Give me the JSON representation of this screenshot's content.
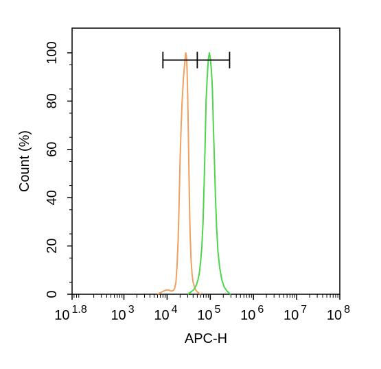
{
  "chart_data": {
    "type": "line",
    "title": "",
    "xlabel": "APC-H",
    "ylabel": "Count  (%)",
    "x_scale": "log",
    "xlim": [
      63,
      100000000
    ],
    "ylim": [
      0,
      100
    ],
    "x_ticks": [
      {
        "base": "10",
        "exp": "1.8",
        "value": 63
      },
      {
        "base": "10",
        "exp": "3",
        "value": 1000
      },
      {
        "base": "10",
        "exp": "4",
        "value": 10000
      },
      {
        "base": "10",
        "exp": "5",
        "value": 100000
      },
      {
        "base": "10",
        "exp": "6",
        "value": 1000000
      },
      {
        "base": "10",
        "exp": "7",
        "value": 10000000
      },
      {
        "base": "10",
        "exp": "8",
        "value": 100000000
      }
    ],
    "y_ticks": [
      "0",
      "20",
      "40",
      "60",
      "80",
      "100"
    ],
    "gate": {
      "x_start": 8000,
      "x_mid": 50000,
      "x_end": 280000,
      "y": 97
    },
    "grid": false,
    "colors": {
      "orange": "#f0a060",
      "green": "#4bd64b"
    },
    "series": [
      {
        "color": "#f0a060",
        "x": [
          6000,
          7000,
          8000,
          9000,
          10000,
          11000,
          12000,
          13000,
          14000,
          15000,
          16000,
          17000,
          18000,
          19000,
          20000,
          21000,
          22000,
          24000,
          26000,
          27000,
          28000,
          29000,
          30000,
          31000,
          32000,
          33000,
          34000,
          36000,
          38000,
          40000,
          43000,
          46000,
          50000,
          55000,
          60000
        ],
        "y": [
          0,
          0.6,
          1.2,
          1.6,
          1.8,
          1.7,
          1.4,
          1.3,
          1.6,
          2.5,
          5,
          12,
          22,
          38,
          55,
          68,
          78,
          90,
          97,
          100,
          99,
          93,
          82,
          68,
          52,
          38,
          26,
          14,
          8,
          5,
          3,
          1.8,
          1,
          0.4,
          0
        ]
      },
      {
        "color": "#4bd64b",
        "x": [
          30000,
          36000,
          42000,
          48000,
          52000,
          56000,
          60000,
          64000,
          68000,
          72000,
          76000,
          80000,
          85000,
          90000,
          95000,
          100000,
          106000,
          112000,
          118000,
          125000,
          132000,
          140000,
          150000,
          165000,
          185000,
          210000,
          240000,
          270000,
          300000
        ],
        "y": [
          0,
          1,
          2,
          4,
          6,
          9,
          14,
          20,
          30,
          45,
          62,
          80,
          90,
          97,
          100,
          98,
          93,
          85,
          70,
          55,
          40,
          28,
          18,
          11,
          6,
          3,
          1.5,
          0.5,
          0
        ]
      }
    ]
  }
}
